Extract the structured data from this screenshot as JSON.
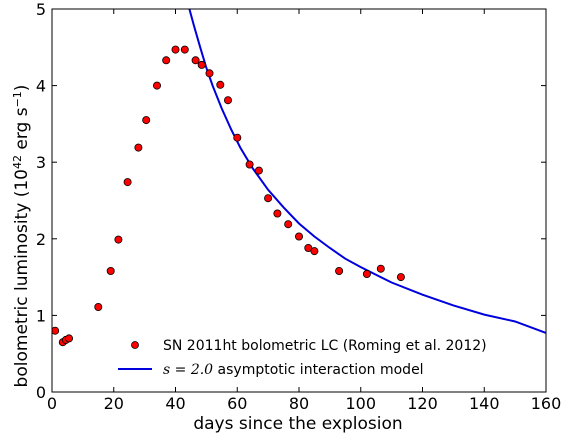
{
  "chart_data": {
    "type": "scatter",
    "xlabel": "days since the explosion",
    "ylabel_main": "bolometric luminosity (10",
    "ylabel_exp1": "42",
    "ylabel_mid": " erg s",
    "ylabel_exp2": "−1",
    "ylabel_end": ")",
    "xlim": [
      0,
      160
    ],
    "ylim": [
      0,
      5
    ],
    "xticks": [
      "0",
      "20",
      "40",
      "60",
      "80",
      "100",
      "120",
      "140",
      "160"
    ],
    "yticks": [
      "0",
      "1",
      "2",
      "3",
      "4",
      "5"
    ],
    "grid": false,
    "legend_position": "lower-center",
    "series": [
      {
        "name": "SN 2011ht bolometric LC (Roming et al. 2012)",
        "kind": "markers",
        "color": "#ff0000",
        "edge_color": "#000000",
        "x": [
          1,
          3.5,
          4.5,
          5.5,
          15,
          19,
          21.5,
          24.5,
          28,
          30.5,
          34,
          37,
          40,
          43,
          46.5,
          48.5,
          51,
          54.5,
          57,
          60,
          64,
          67,
          70,
          73,
          76.5,
          80,
          83,
          85,
          93,
          102,
          106.5,
          113
        ],
        "y": [
          0.8,
          0.65,
          0.68,
          0.7,
          1.11,
          1.58,
          1.99,
          2.74,
          3.19,
          3.55,
          4.0,
          4.33,
          4.47,
          4.47,
          4.33,
          4.27,
          4.16,
          4.01,
          3.81,
          3.32,
          2.97,
          2.89,
          2.53,
          2.33,
          2.19,
          2.03,
          1.88,
          1.84,
          1.58,
          1.54,
          1.61,
          1.5
        ]
      },
      {
        "name": "s = 2.0 asymptotic interaction model",
        "legend_math": "s",
        "legend_eq": " = ",
        "legend_num": "2.0",
        "legend_rest": " asymptotic interaction model",
        "kind": "line",
        "color": "#0000dd",
        "x": [
          44.5,
          46,
          48,
          50,
          52,
          55,
          58,
          61,
          65,
          70,
          75,
          80,
          85,
          90,
          95,
          100,
          110,
          120,
          130,
          140,
          150,
          160
        ],
        "y": [
          5.0,
          4.78,
          4.5,
          4.23,
          4.0,
          3.7,
          3.43,
          3.19,
          2.92,
          2.64,
          2.41,
          2.2,
          2.03,
          1.88,
          1.74,
          1.63,
          1.43,
          1.27,
          1.13,
          1.01,
          0.92,
          0.77
        ]
      }
    ]
  }
}
